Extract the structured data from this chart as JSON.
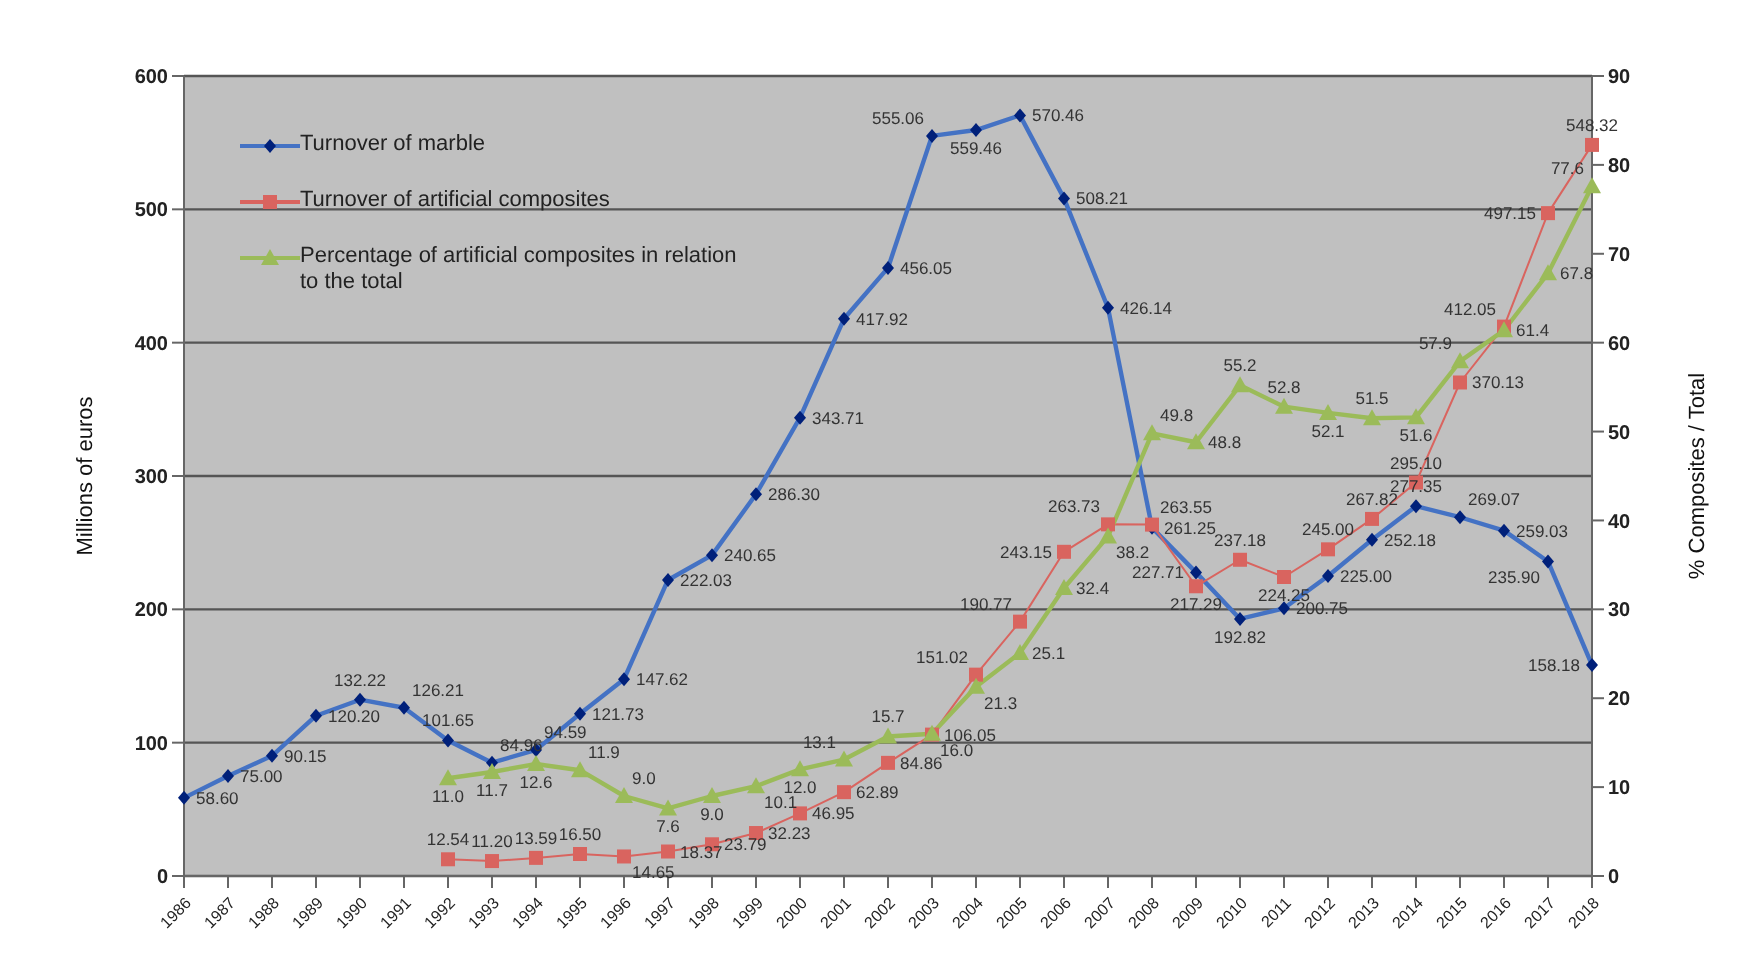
{
  "chart_data": {
    "type": "line",
    "ylabel": "Millions of euros",
    "y2label": "% Composites / Total",
    "categories": [
      "1986",
      "1987",
      "1988",
      "1989",
      "1990",
      "1991",
      "1992",
      "1993",
      "1994",
      "1995",
      "1996",
      "1997",
      "1998",
      "1999",
      "2000",
      "2001",
      "2002",
      "2003",
      "2004",
      "2005",
      "2006",
      "2007",
      "2008",
      "2009",
      "2010",
      "2011",
      "2012",
      "2013",
      "2014",
      "2015",
      "2016",
      "2017",
      "2018"
    ],
    "series": [
      {
        "name": "Turnover of marble",
        "color": "#4472c4",
        "marker": "diamond",
        "values": [
          58.6,
          75.0,
          90.15,
          120.2,
          132.22,
          126.21,
          101.65,
          84.96,
          94.59,
          121.73,
          147.62,
          222.03,
          240.65,
          286.3,
          343.71,
          417.92,
          456.05,
          555.06,
          559.46,
          570.46,
          508.21,
          426.14,
          261.25,
          227.71,
          192.82,
          200.75,
          225.0,
          252.18,
          277.35,
          269.07,
          259.03,
          235.9,
          158.18
        ],
        "value_labels": [
          "58.60",
          "75.00",
          "90.15",
          "120.20",
          "132.22",
          "126.21",
          "101.65",
          "84.96",
          "94.59",
          "121.73",
          "147.62",
          "222.03",
          "240.65",
          "286.30",
          "343.71",
          "417.92",
          "456.05",
          "555.06",
          "559.46",
          "570.46",
          "508.21",
          "426.14",
          "261.25",
          "227.71",
          "192.82",
          "200.75",
          "225.00",
          "252.18",
          "277.35",
          "269.07",
          "259.03",
          "235.90",
          "158.18"
        ]
      },
      {
        "name": "Turnover of artificial composites",
        "color": "#d9645f",
        "marker": "square",
        "values": [
          null,
          null,
          null,
          null,
          null,
          null,
          12.54,
          11.2,
          13.59,
          16.5,
          14.65,
          18.37,
          23.79,
          32.23,
          46.95,
          62.89,
          84.86,
          106.05,
          151.02,
          190.77,
          243.15,
          263.73,
          263.55,
          217.29,
          237.18,
          224.25,
          245.0,
          267.82,
          295.1,
          370.13,
          412.05,
          497.15,
          548.32
        ],
        "value_labels": [
          null,
          null,
          null,
          null,
          null,
          null,
          "12.54",
          "11.20",
          "13.59",
          "16.50",
          "14.65",
          "18.37",
          "23.79",
          "32.23",
          "46.95",
          "62.89",
          "84.86",
          "106.05",
          "151.02",
          "190.77",
          "243.15",
          "263.73",
          "263.55",
          "217.29",
          "237.18",
          "224.25",
          "245.00",
          "267.82",
          "295.10",
          "370.13",
          "412.05",
          "497.15",
          "548.32"
        ]
      },
      {
        "name": "Percentage of artificial composites in relation to the total",
        "color": "#9bbb59",
        "marker": "triangle",
        "axis": "y2",
        "values": [
          null,
          null,
          null,
          null,
          null,
          null,
          11.0,
          11.7,
          12.6,
          11.9,
          9.0,
          7.6,
          9.0,
          10.1,
          12.0,
          13.1,
          15.7,
          16.0,
          21.3,
          25.1,
          32.4,
          38.2,
          49.8,
          48.8,
          55.2,
          52.8,
          52.1,
          51.5,
          51.6,
          57.9,
          61.4,
          67.8,
          77.6
        ],
        "value_labels": [
          null,
          null,
          null,
          null,
          null,
          null,
          "11.0",
          "11.7",
          "12.6",
          "11.9",
          "9.0",
          "7.6",
          "9.0",
          "10.1",
          "12.0",
          "13.1",
          "15.7",
          "16.0",
          "21.3",
          "25.1",
          "32.4",
          "38.2",
          "49.8",
          "48.8",
          "55.2",
          "52.8",
          "52.1",
          "51.5",
          "51.6",
          "57.9",
          "61.4",
          "67.8",
          "77.6"
        ]
      }
    ],
    "ylim": [
      0,
      600
    ],
    "yticks": [
      0,
      100,
      200,
      300,
      400,
      500,
      600
    ],
    "y2lim": [
      0,
      90
    ],
    "y2ticks": [
      0,
      10,
      20,
      30,
      40,
      50,
      60,
      70,
      80,
      90
    ],
    "grid": "y",
    "legend": "top left"
  }
}
